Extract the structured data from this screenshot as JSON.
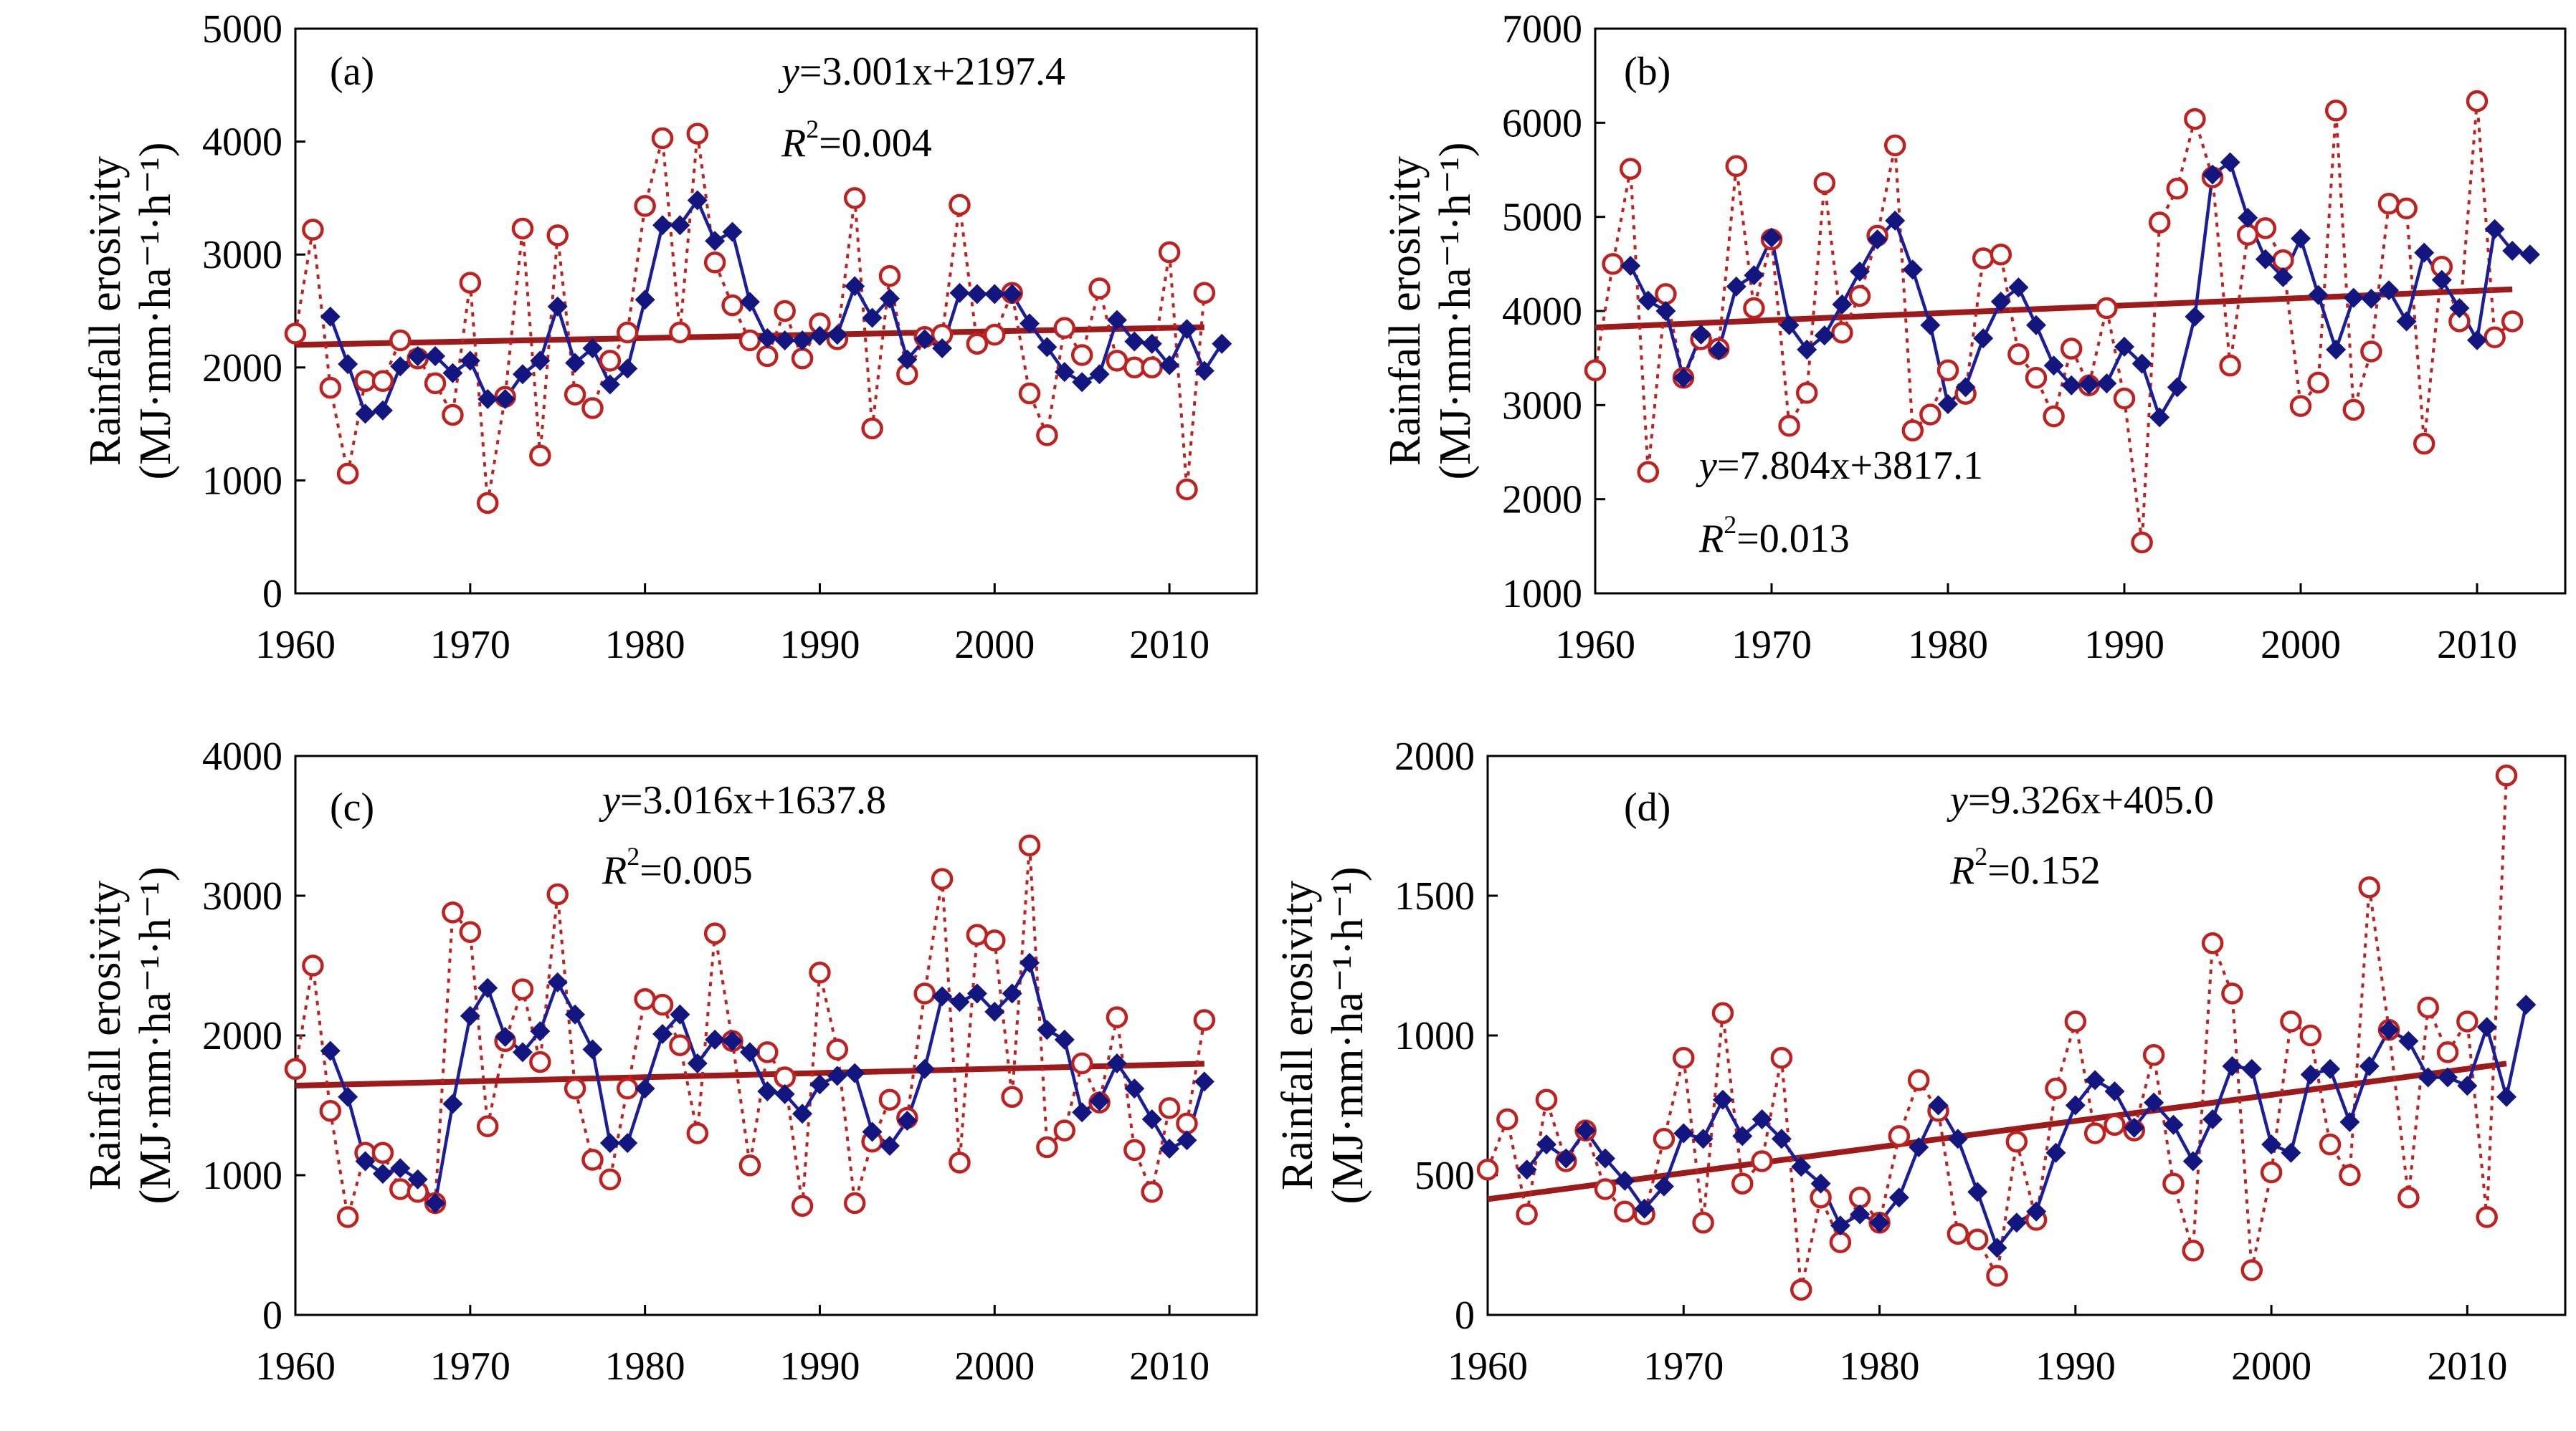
{
  "colors": {
    "raw": "#c0201e",
    "smoothed": "#141680",
    "trend": "#9c1a1a",
    "axis": "#000000"
  },
  "chart_data": [
    {
      "type": "line",
      "label": "(a)",
      "ylabel": [
        "Rainfall erosivity",
        "(MJ·mm·ha⁻¹·h⁻¹)"
      ],
      "xlim": [
        1960,
        2015
      ],
      "xticks": [
        1960,
        1970,
        1980,
        1990,
        2000,
        2010
      ],
      "ylim": [
        0,
        5000
      ],
      "yticks": [
        0,
        1000,
        2000,
        3000,
        4000,
        5000
      ],
      "equation": {
        "y": "y",
        "rhs": "=3.001x+2197.4"
      },
      "r2": {
        "R": "R",
        "sup": "2",
        "rhs": "=0.004"
      },
      "trend": {
        "slope": 3.001,
        "intercept": 2197.4,
        "x0": 1960
      },
      "series": [
        {
          "name": "annual",
          "x0": 1960,
          "values": [
            2300,
            3220,
            1820,
            1060,
            1880,
            1880,
            2240,
            2080,
            1860,
            1580,
            2750,
            800,
            1740,
            3230,
            1220,
            3170,
            1760,
            1640,
            2060,
            2310,
            3430,
            4030,
            2310,
            4070,
            2930,
            2550,
            2240,
            2100,
            2500,
            2080,
            2390,
            2250,
            3500,
            1460,
            2810,
            1940,
            2270,
            2290,
            3440,
            2210,
            2290,
            2660,
            1770,
            1400,
            2350,
            2110,
            2700,
            2060,
            2000,
            2000,
            3020,
            920,
            2660
          ]
        },
        {
          "name": "smoothed",
          "x0": 1962,
          "values": [
            2450,
            2030,
            1590,
            1620,
            2010,
            2100,
            2100,
            1950,
            2060,
            1720,
            1720,
            1940,
            2060,
            2540,
            2040,
            2170,
            1850,
            1990,
            2600,
            3260,
            3260,
            3480,
            3120,
            3200,
            2580,
            2260,
            2240,
            2240,
            2280,
            2290,
            2720,
            2440,
            2610,
            2070,
            2250,
            2170,
            2660,
            2650,
            2650,
            2650,
            2390,
            2180,
            1960,
            1870,
            1940,
            2420,
            2230,
            2210,
            2020,
            2340,
            1970,
            2210
          ]
        }
      ]
    },
    {
      "type": "line",
      "label": "(b)",
      "ylabel": [
        "Rainfall erosivity",
        "(MJ·mm·ha⁻¹·h⁻¹)"
      ],
      "xlim": [
        1960,
        2015
      ],
      "xticks": [
        1960,
        1970,
        1980,
        1990,
        2000,
        2010
      ],
      "ylim": [
        1000,
        7000
      ],
      "yticks": [
        1000,
        2000,
        3000,
        4000,
        5000,
        6000,
        7000
      ],
      "equation": {
        "y": "y",
        "rhs": "=7.804x+3817.1"
      },
      "r2": {
        "R": "R",
        "sup": "2",
        "rhs": "=0.013"
      },
      "trend": {
        "slope": 7.804,
        "intercept": 3817.1,
        "x0": 1960
      },
      "series": [
        {
          "name": "annual",
          "x0": 1960,
          "values": [
            3370,
            4500,
            5510,
            2290,
            4180,
            3290,
            3700,
            3600,
            5540,
            4030,
            4760,
            2780,
            3130,
            5360,
            3770,
            4160,
            4800,
            5760,
            2730,
            2900,
            3370,
            3120,
            4560,
            4600,
            3540,
            3290,
            2880,
            3600,
            3210,
            4030,
            3070,
            1540,
            4940,
            5300,
            6040,
            5420,
            3420,
            4810,
            4880,
            4540,
            2990,
            3240,
            6130,
            2950,
            3570,
            5140,
            5090,
            2590,
            4470,
            3890,
            6230,
            3720,
            3890
          ]
        },
        {
          "name": "smoothed",
          "x0": 1962,
          "values": [
            4480,
            4110,
            4000,
            3290,
            3750,
            3580,
            4260,
            4380,
            4780,
            3850,
            3590,
            3740,
            4070,
            4420,
            4760,
            4960,
            4440,
            3850,
            3010,
            3190,
            3710,
            4100,
            4250,
            3850,
            3420,
            3210,
            3220,
            3230,
            3620,
            3440,
            2870,
            3190,
            3940,
            5450,
            5580,
            4990,
            4550,
            4360,
            4770,
            4170,
            3590,
            4140,
            4130,
            4220,
            3890,
            4620,
            4330,
            4030,
            3690,
            4870,
            4640,
            4600
          ]
        }
      ]
    },
    {
      "type": "line",
      "label": "(c)",
      "ylabel": [
        "Rainfall erosivity",
        "(MJ·mm·ha⁻¹·h⁻¹)"
      ],
      "xlim": [
        1960,
        2015
      ],
      "xticks": [
        1960,
        1970,
        1980,
        1990,
        2000,
        2010
      ],
      "ylim": [
        0,
        4000
      ],
      "yticks": [
        0,
        1000,
        2000,
        3000,
        4000
      ],
      "equation": {
        "y": "y",
        "rhs": "=3.016x+1637.8"
      },
      "r2": {
        "R": "R",
        "sup": "2",
        "rhs": "=0.005"
      },
      "trend": {
        "slope": 3.016,
        "intercept": 1637.8,
        "x0": 1960
      },
      "series": [
        {
          "name": "annual",
          "x0": 1960,
          "values": [
            1760,
            2500,
            1460,
            700,
            1160,
            1160,
            900,
            880,
            800,
            2880,
            2740,
            1350,
            1960,
            2330,
            1810,
            3010,
            1620,
            1110,
            970,
            1620,
            2260,
            2220,
            1930,
            1300,
            2730,
            1960,
            1070,
            1880,
            1700,
            780,
            2450,
            1900,
            800,
            1240,
            1540,
            1410,
            2300,
            3120,
            1090,
            2720,
            2680,
            1560,
            3360,
            1200,
            1320,
            1800,
            1520,
            2130,
            1180,
            880,
            1480,
            1370,
            2110
          ]
        },
        {
          "name": "smoothed",
          "x0": 1962,
          "values": [
            1890,
            1560,
            1100,
            1010,
            1050,
            970,
            800,
            1510,
            2140,
            2340,
            1990,
            1880,
            2030,
            2380,
            2150,
            1900,
            1230,
            1230,
            1620,
            2010,
            2150,
            1800,
            1970,
            1960,
            1880,
            1600,
            1580,
            1440,
            1650,
            1710,
            1730,
            1310,
            1210,
            1390,
            1760,
            2280,
            2240,
            2300,
            2170,
            2300,
            2520,
            2040,
            1970,
            1450,
            1530,
            1800,
            1620,
            1400,
            1190,
            1250,
            1670
          ]
        }
      ]
    },
    {
      "type": "line",
      "label": "(d)",
      "ylabel": [
        "Rainfall erosivity",
        "(MJ·mm·ha⁻¹·h⁻¹)"
      ],
      "xlim": [
        1960,
        2015
      ],
      "xticks": [
        1960,
        1970,
        1980,
        1990,
        2000,
        2010
      ],
      "ylim": [
        0,
        2000
      ],
      "yticks": [
        0,
        500,
        1000,
        1500,
        2000
      ],
      "equation": {
        "y": "y",
        "rhs": "=9.326x+405.0"
      },
      "r2": {
        "R": "R",
        "sup": "2",
        "rhs": "=0.152"
      },
      "trend": {
        "slope": 9.326,
        "intercept": 405.0,
        "x0": 1960
      },
      "series": [
        {
          "name": "annual",
          "x0": 1960,
          "values": [
            520,
            700,
            360,
            770,
            550,
            660,
            450,
            370,
            360,
            630,
            920,
            330,
            1080,
            470,
            550,
            920,
            90,
            420,
            260,
            420,
            330,
            640,
            840,
            730,
            290,
            270,
            140,
            620,
            340,
            810,
            1050,
            650,
            680,
            660,
            930,
            470,
            230,
            1330,
            1150,
            160,
            510,
            1050,
            1000,
            610,
            500,
            1530,
            1020,
            420,
            1100,
            940,
            1050,
            350,
            1930
          ]
        },
        {
          "name": "smoothed",
          "x0": 1962,
          "values": [
            520,
            610,
            560,
            660,
            560,
            480,
            380,
            460,
            650,
            630,
            770,
            640,
            700,
            630,
            530,
            470,
            320,
            360,
            330,
            420,
            600,
            750,
            630,
            440,
            240,
            330,
            370,
            580,
            750,
            840,
            800,
            670,
            760,
            680,
            550,
            700,
            890,
            880,
            610,
            580,
            860,
            880,
            690,
            890,
            1020,
            980,
            850,
            850,
            820,
            1030,
            780,
            1110
          ]
        }
      ]
    }
  ]
}
